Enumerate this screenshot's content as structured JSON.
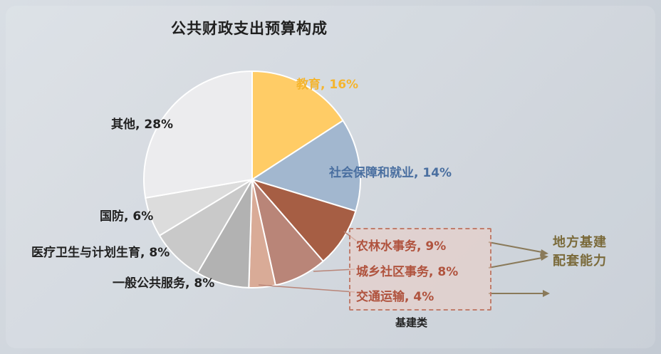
{
  "chart_data": {
    "type": "pie",
    "title": "公共财政支出预算构成",
    "slices": [
      {
        "label": "教育, 16%",
        "value": 16,
        "color": "#ffcc66"
      },
      {
        "label": "社会保障和就业, 14%",
        "value": 14,
        "color": "#a2b7cf"
      },
      {
        "label": "农林水事务, 9%",
        "value": 9,
        "color": "#a65e44"
      },
      {
        "label": "城乡社区事务, 8%",
        "value": 8,
        "color": "#b98578"
      },
      {
        "label": "交通运输, 4%",
        "value": 4,
        "color": "#d9ab97"
      },
      {
        "label": "一般公共服务, 8%",
        "value": 8,
        "color": "#b2b2b2"
      },
      {
        "label": "医疗卫生与计划生育, 8%",
        "value": 8,
        "color": "#c9c9c9"
      },
      {
        "label": "国防, 6%",
        "value": 6,
        "color": "#dcdcdc"
      },
      {
        "label": "其他, 28%",
        "value": 28,
        "color": "#ececee"
      }
    ],
    "group_label": "基建类",
    "side_label_lines": [
      "地方基建",
      "配套能力"
    ]
  }
}
